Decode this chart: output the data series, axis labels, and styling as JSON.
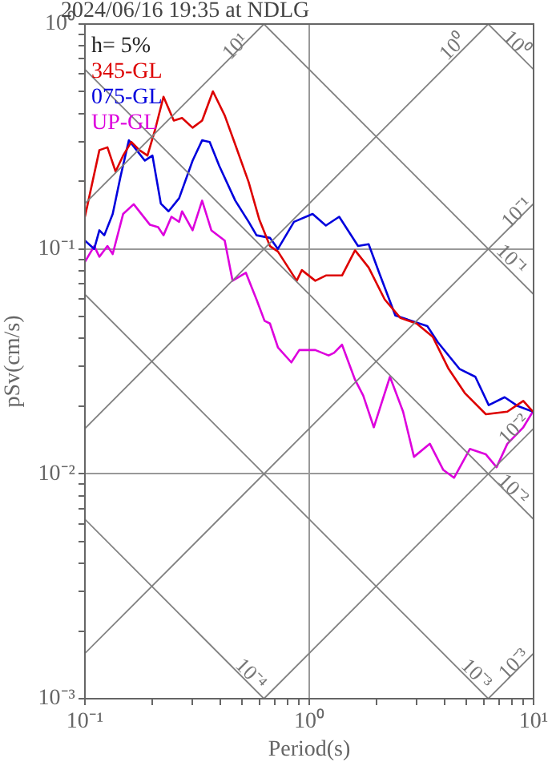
{
  "chart_data": {
    "type": "line",
    "title": "2024/06/16 19:35 at NDLG",
    "xlabel": "Period(s)",
    "ylabel": "pSv(cm/s)",
    "log": "xy",
    "grid": true,
    "marker": "none",
    "legend": "top left",
    "xlim": [
      0.1,
      10
    ],
    "ylim": [
      0.001,
      1
    ],
    "xticks": [
      {
        "value": 0.1,
        "label": "10⁻¹"
      },
      {
        "value": 0.2,
        "label": null
      },
      {
        "value": 0.3,
        "label": null
      },
      {
        "value": 0.4,
        "label": null
      },
      {
        "value": 0.5,
        "label": null
      },
      {
        "value": 0.6,
        "label": null
      },
      {
        "value": 0.7,
        "label": null
      },
      {
        "value": 0.8,
        "label": null
      },
      {
        "value": 0.9,
        "label": null
      },
      {
        "value": 1,
        "label": "10⁰"
      },
      {
        "value": 2,
        "label": null
      },
      {
        "value": 3,
        "label": null
      },
      {
        "value": 4,
        "label": null
      },
      {
        "value": 5,
        "label": null
      },
      {
        "value": 6,
        "label": null
      },
      {
        "value": 7,
        "label": null
      },
      {
        "value": 8,
        "label": null
      },
      {
        "value": 9,
        "label": null
      },
      {
        "value": 10,
        "label": "10¹"
      }
    ],
    "yticks": [
      {
        "value": 0.001,
        "label": "10⁻³"
      },
      {
        "value": 0.002,
        "label": null
      },
      {
        "value": 0.003,
        "label": null
      },
      {
        "value": 0.004,
        "label": null
      },
      {
        "value": 0.005,
        "label": null
      },
      {
        "value": 0.006,
        "label": null
      },
      {
        "value": 0.007,
        "label": null
      },
      {
        "value": 0.008,
        "label": null
      },
      {
        "value": 0.009,
        "label": null
      },
      {
        "value": 0.01,
        "label": "10⁻²"
      },
      {
        "value": 0.02,
        "label": null
      },
      {
        "value": 0.03,
        "label": null
      },
      {
        "value": 0.04,
        "label": null
      },
      {
        "value": 0.05,
        "label": null
      },
      {
        "value": 0.06,
        "label": null
      },
      {
        "value": 0.07,
        "label": null
      },
      {
        "value": 0.08,
        "label": null
      },
      {
        "value": 0.09,
        "label": null
      },
      {
        "value": 0.1,
        "label": "10⁻¹"
      },
      {
        "value": 0.2,
        "label": null
      },
      {
        "value": 0.3,
        "label": null
      },
      {
        "value": 0.4,
        "label": null
      },
      {
        "value": 0.5,
        "label": null
      },
      {
        "value": 0.6,
        "label": null
      },
      {
        "value": 0.7,
        "label": null
      },
      {
        "value": 0.8,
        "label": null
      },
      {
        "value": 0.9,
        "label": null
      },
      {
        "value": 1,
        "label": "10⁰"
      }
    ],
    "series": [
      {
        "type": "line",
        "color": "#808080",
        "x": [
          0.1,
          0.628
        ],
        "values": [
          0.159,
          1
        ]
      },
      {
        "type": "line",
        "color": "#808080",
        "x": [
          0.1,
          6.28
        ],
        "values": [
          0.0159,
          1
        ]
      },
      {
        "type": "line",
        "color": "#808080",
        "x": [
          0.1,
          10
        ],
        "values": [
          0.00159,
          0.159
        ]
      },
      {
        "type": "line",
        "color": "#808080",
        "x": [
          0.628,
          10
        ],
        "values": [
          0.001,
          0.0159
        ]
      },
      {
        "type": "line",
        "color": "#808080",
        "x": [
          6.28,
          10
        ],
        "values": [
          0.001,
          0.00159
        ]
      },
      {
        "type": "line",
        "color": "#808080",
        "x": [
          6.28,
          10
        ],
        "values": [
          1,
          0.628
        ]
      },
      {
        "type": "line",
        "color": "#808080",
        "x": [
          0.628,
          10
        ],
        "values": [
          1,
          0.0628
        ]
      },
      {
        "type": "line",
        "color": "#808080",
        "x": [
          0.1,
          10
        ],
        "values": [
          0.628,
          0.00628
        ]
      },
      {
        "type": "line",
        "color": "#808080",
        "x": [
          0.1,
          6.28
        ],
        "values": [
          0.0628,
          0.001
        ]
      },
      {
        "type": "line",
        "color": "#808080",
        "x": [
          0.1,
          0.628
        ],
        "values": [
          0.00628,
          0.001
        ]
      },
      {
        "name": "345-GL",
        "color": "#dd0000",
        "x": [
          0.1,
          0.116,
          0.126,
          0.137,
          0.148,
          0.161,
          0.175,
          0.19,
          0.206,
          0.224,
          0.249,
          0.271,
          0.302,
          0.333,
          0.372,
          0.42,
          0.468,
          0.537,
          0.599,
          0.668,
          0.725,
          0.879,
          0.927,
          1.064,
          1.186,
          1.4,
          1.6,
          1.84,
          2.17,
          2.55,
          3.01,
          3.55,
          4.18,
          4.93,
          6.13,
          7.64,
          9.0,
          9.93
        ],
        "values": [
          0.139,
          0.275,
          0.283,
          0.221,
          0.26,
          0.299,
          0.275,
          0.26,
          0.342,
          0.475,
          0.372,
          0.382,
          0.346,
          0.372,
          0.502,
          0.392,
          0.291,
          0.198,
          0.135,
          0.103,
          0.0974,
          0.0722,
          0.0805,
          0.0722,
          0.0762,
          0.0762,
          0.0986,
          0.0827,
          0.0596,
          0.0493,
          0.0466,
          0.0407,
          0.0293,
          0.0229,
          0.0184,
          0.0189,
          0.0211,
          0.0189
        ]
      },
      {
        "name": "075-GL",
        "color": "#0000dd",
        "x": [
          0.1,
          0.11,
          0.116,
          0.122,
          0.133,
          0.144,
          0.157,
          0.17,
          0.185,
          0.2,
          0.218,
          0.236,
          0.263,
          0.302,
          0.333,
          0.36,
          0.397,
          0.468,
          0.537,
          0.582,
          0.668,
          0.725,
          0.855,
          1.035,
          1.186,
          1.36,
          1.65,
          1.84,
          2.05,
          2.42,
          3.36,
          3.74,
          4.67,
          5.5,
          6.31,
          7.43,
          8.51,
          9.93
        ],
        "values": [
          0.109,
          0.1,
          0.121,
          0.115,
          0.143,
          0.209,
          0.304,
          0.275,
          0.247,
          0.26,
          0.159,
          0.147,
          0.168,
          0.247,
          0.304,
          0.299,
          0.234,
          0.164,
          0.132,
          0.115,
          0.112,
          0.1,
          0.132,
          0.143,
          0.127,
          0.139,
          0.103,
          0.105,
          0.0783,
          0.0506,
          0.0454,
          0.0385,
          0.0293,
          0.027,
          0.0202,
          0.0219,
          0.02,
          0.0189
        ]
      },
      {
        "name": "UP-GL",
        "color": "#dd00dd",
        "x": [
          0.1,
          0.11,
          0.116,
          0.126,
          0.133,
          0.148,
          0.165,
          0.195,
          0.212,
          0.224,
          0.243,
          0.263,
          0.271,
          0.302,
          0.333,
          0.366,
          0.42,
          0.455,
          0.522,
          0.582,
          0.632,
          0.668,
          0.725,
          0.832,
          0.903,
          1.064,
          1.22,
          1.29,
          1.4,
          1.6,
          1.74,
          1.94,
          2.29,
          2.62,
          2.93,
          3.45,
          3.96,
          4.42,
          5.2,
          6.13,
          6.84,
          7.64,
          9.0,
          9.93
        ],
        "values": [
          0.0875,
          0.103,
          0.0923,
          0.103,
          0.0949,
          0.143,
          0.158,
          0.128,
          0.125,
          0.115,
          0.139,
          0.132,
          0.147,
          0.121,
          0.164,
          0.121,
          0.109,
          0.0722,
          0.0783,
          0.0596,
          0.0479,
          0.0466,
          0.0365,
          0.0313,
          0.0355,
          0.0355,
          0.0336,
          0.0345,
          0.0375,
          0.0262,
          0.0223,
          0.0161,
          0.027,
          0.0189,
          0.0119,
          0.0136,
          0.0104,
          0.0096,
          0.0129,
          0.0122,
          0.0107,
          0.0136,
          0.0161,
          0.0189
        ]
      }
    ],
    "annotations": [
      "h= 5%",
      {
        "text": "10¹",
        "x": 0.471,
        "y": 0.79
      },
      {
        "text": "10⁰",
        "x": 4.41,
        "y": 0.79
      },
      {
        "text": "10⁰",
        "x": 8.36,
        "y": 0.81
      },
      {
        "text": "10⁻¹",
        "x": 8.47,
        "y": 0.144
      },
      {
        "text": "10⁻¹",
        "x": 7.94,
        "y": 0.0893
      },
      {
        "text": "10⁻²",
        "x": 8.22,
        "y": 0.0157
      },
      {
        "text": "10⁻²",
        "x": 8.07,
        "y": 0.0085
      },
      {
        "text": "10⁻³",
        "x": 5.53,
        "y": 0.00128
      },
      {
        "text": "10⁻³",
        "x": 8.22,
        "y": 0.00142
      },
      {
        "text": "10⁻⁴",
        "x": 0.547,
        "y": 0.00128
      }
    ]
  }
}
